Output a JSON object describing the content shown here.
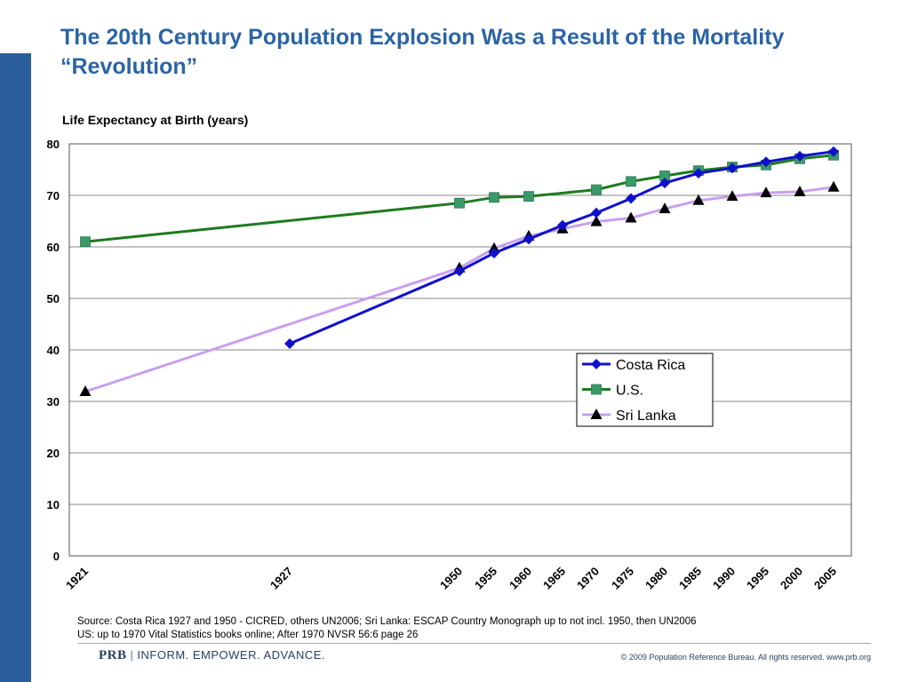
{
  "title": "The 20th Century Population Explosion Was a Result of the Mortality “Revolution”",
  "colors": {
    "title": "#2b64a6",
    "sidebar": "#2a5f9b",
    "costa_rica": "#1010cc",
    "us": "#1e7b1e",
    "us_marker": "#3a9a6a",
    "sri_lanka": "#c8a0ee",
    "sri_lanka_marker": "#000000"
  },
  "chart_data": {
    "type": "line",
    "ylabel": "Life Expectancy at Birth (years)",
    "ylim": [
      0,
      80
    ],
    "yticks": [
      0,
      10,
      20,
      30,
      40,
      50,
      60,
      70,
      80
    ],
    "xticks": [
      "1921",
      "1927",
      "1950",
      "1955",
      "1960",
      "1965",
      "1970",
      "1975",
      "1980",
      "1985",
      "1990",
      "1995",
      "2000",
      "2005"
    ],
    "grid": true,
    "legend_position": "right-middle",
    "series": [
      {
        "name": "Costa Rica",
        "marker": "diamond",
        "x": [
          "1927",
          "1950",
          "1955",
          "1960",
          "1965",
          "1970",
          "1975",
          "1980",
          "1985",
          "1990",
          "1995",
          "2000",
          "2005"
        ],
        "values": [
          41.2,
          55.3,
          58.8,
          61.5,
          64.2,
          66.6,
          69.4,
          72.4,
          74.3,
          75.3,
          76.5,
          77.6,
          78.5
        ]
      },
      {
        "name": "U.S.",
        "marker": "square",
        "x": [
          "1921",
          "1950",
          "1955",
          "1960",
          "1970",
          "1975",
          "1980",
          "1985",
          "1990",
          "1995",
          "2000",
          "2005"
        ],
        "values": [
          61.0,
          68.5,
          69.6,
          69.8,
          71.1,
          72.7,
          73.8,
          74.8,
          75.5,
          75.9,
          77.1,
          77.8
        ]
      },
      {
        "name": "Sri Lanka",
        "marker": "triangle",
        "x": [
          "1921",
          "1950",
          "1955",
          "1960",
          "1965",
          "1970",
          "1975",
          "1980",
          "1985",
          "1990",
          "1995",
          "2000",
          "2005"
        ],
        "values": [
          31.9,
          55.9,
          59.7,
          62.1,
          63.5,
          64.9,
          65.6,
          67.4,
          69.0,
          69.8,
          70.5,
          70.7,
          71.6
        ]
      }
    ]
  },
  "source_line1": "Source: Costa Rica 1927 and 1950 - CICRED, others UN2006; Sri Lanka:  ESCAP Country Monograph up to not incl. 1950, then UN2006",
  "source_line2": "US: up to 1970 Vital Statistics books online; After 1970 NVSR 56:6 page 26",
  "footer": {
    "brand": "PRB",
    "separator": "|",
    "tagline": "INFORM. EMPOWER. ADVANCE.",
    "copyright": "© 2009 Population Reference Bureau. All rights reserved. www.prb.org"
  }
}
